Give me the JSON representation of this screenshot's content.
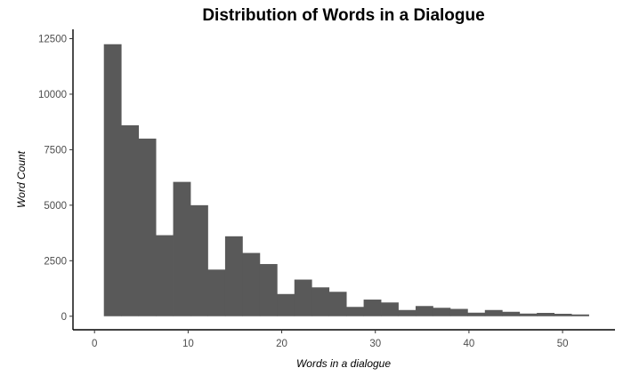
{
  "chart_data": {
    "type": "bar",
    "title": "Distribution of Words in a Dialogue",
    "xlabel": "Words in a dialogue",
    "ylabel": "Word Count",
    "bin_width": 1.85,
    "bins": [
      {
        "start": 1.0,
        "count": 12250
      },
      {
        "start": 2.85,
        "count": 8600
      },
      {
        "start": 4.7,
        "count": 8000
      },
      {
        "start": 6.55,
        "count": 3650
      },
      {
        "start": 8.4,
        "count": 6050
      },
      {
        "start": 10.25,
        "count": 5000
      },
      {
        "start": 12.1,
        "count": 2100
      },
      {
        "start": 13.95,
        "count": 3600
      },
      {
        "start": 15.8,
        "count": 2850
      },
      {
        "start": 17.65,
        "count": 2350
      },
      {
        "start": 19.5,
        "count": 1000
      },
      {
        "start": 21.35,
        "count": 1650
      },
      {
        "start": 23.2,
        "count": 1300
      },
      {
        "start": 25.05,
        "count": 1100
      },
      {
        "start": 26.9,
        "count": 420
      },
      {
        "start": 28.75,
        "count": 750
      },
      {
        "start": 30.6,
        "count": 620
      },
      {
        "start": 32.45,
        "count": 280
      },
      {
        "start": 34.3,
        "count": 460
      },
      {
        "start": 36.15,
        "count": 380
      },
      {
        "start": 38.0,
        "count": 330
      },
      {
        "start": 39.85,
        "count": 160
      },
      {
        "start": 41.7,
        "count": 280
      },
      {
        "start": 43.55,
        "count": 200
      },
      {
        "start": 45.4,
        "count": 120
      },
      {
        "start": 47.25,
        "count": 150
      },
      {
        "start": 49.1,
        "count": 110
      },
      {
        "start": 50.95,
        "count": 80
      }
    ],
    "x_ticks": [
      0,
      10,
      20,
      30,
      40,
      50
    ],
    "y_ticks": [
      0,
      2500,
      5000,
      7500,
      10000,
      12500
    ],
    "xlim": [
      -2.3,
      55.6
    ],
    "ylim": [
      -610,
      12920
    ],
    "bar_color": "#595959",
    "grid": false,
    "legend": "none"
  }
}
